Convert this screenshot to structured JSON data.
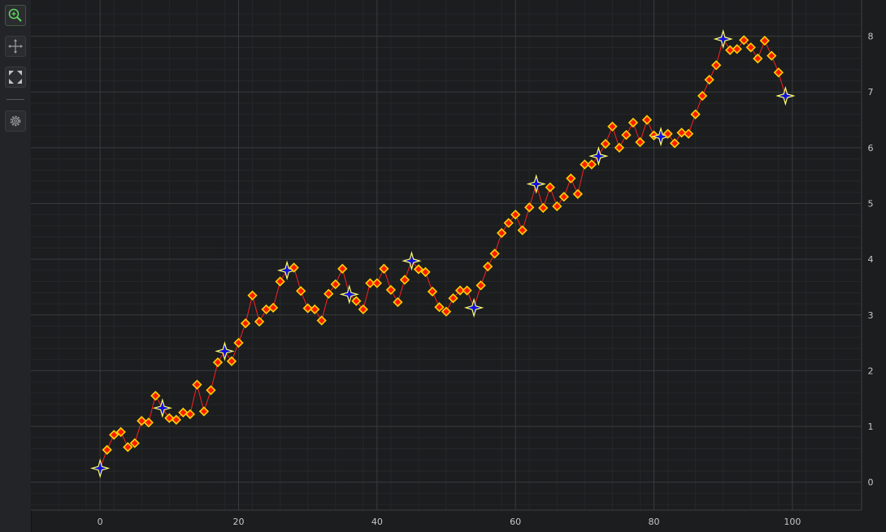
{
  "toolbar": {
    "buttons": [
      {
        "name": "zoom",
        "icon": "zoom-in-icon"
      },
      {
        "name": "pan",
        "icon": "pan-arrows-icon"
      },
      {
        "name": "zoom-extents",
        "icon": "zoom-extents-icon"
      },
      {
        "name": "settings",
        "icon": "gear-icon"
      }
    ]
  },
  "colors": {
    "background": "#1c1d1f",
    "grid_major": "#3a3b3e",
    "grid_minor": "#26272a",
    "line": "#ff2020",
    "marker_fill": "#ff1a00",
    "marker_stroke": "#ffd200",
    "star_fill": "#1010dd",
    "star_stroke": "#ffff66"
  },
  "chart_data": {
    "type": "line",
    "title": "",
    "xlabel": "",
    "ylabel": "",
    "xlim": [
      -10,
      110
    ],
    "ylim": [
      -0.5,
      8.65
    ],
    "x_ticks": [
      "0",
      "20",
      "40",
      "60",
      "80",
      "100"
    ],
    "y_ticks": [
      "0",
      "1",
      "2",
      "3",
      "4",
      "5",
      "6",
      "7",
      "8"
    ],
    "y_axis_position": "right",
    "grid": true,
    "legend": "none",
    "x": [
      0,
      1,
      2,
      3,
      4,
      5,
      6,
      7,
      8,
      9,
      10,
      11,
      12,
      13,
      14,
      15,
      16,
      17,
      18,
      19,
      20,
      21,
      22,
      23,
      24,
      25,
      26,
      27,
      28,
      29,
      30,
      31,
      32,
      33,
      34,
      35,
      36,
      37,
      38,
      39,
      40,
      41,
      42,
      43,
      44,
      45,
      46,
      47,
      48,
      49,
      50,
      51,
      52,
      53,
      54,
      55,
      56,
      57,
      58,
      59,
      60,
      61,
      62,
      63,
      64,
      65,
      66,
      67,
      68,
      69,
      70,
      71,
      72,
      73,
      74,
      75,
      76,
      77,
      78,
      79,
      80,
      81,
      82,
      83,
      84,
      85,
      86,
      87,
      88,
      89,
      90,
      91,
      92,
      93,
      94,
      95,
      96,
      97,
      98,
      99
    ],
    "values": [
      0.25,
      0.58,
      0.85,
      0.9,
      0.63,
      0.7,
      1.1,
      1.07,
      1.55,
      1.33,
      1.15,
      1.12,
      1.25,
      1.22,
      1.75,
      1.27,
      1.65,
      2.15,
      2.35,
      2.17,
      2.5,
      2.85,
      3.35,
      2.88,
      3.1,
      3.13,
      3.6,
      3.8,
      3.85,
      3.43,
      3.12,
      3.1,
      2.9,
      3.38,
      3.55,
      3.83,
      3.37,
      3.25,
      3.1,
      3.57,
      3.57,
      3.83,
      3.45,
      3.23,
      3.63,
      3.97,
      3.82,
      3.77,
      3.42,
      3.14,
      3.06,
      3.3,
      3.44,
      3.44,
      3.13,
      3.53,
      3.87,
      4.1,
      4.47,
      4.65,
      4.8,
      4.52,
      4.93,
      5.35,
      4.92,
      5.29,
      4.95,
      5.12,
      5.45,
      5.17,
      5.7,
      5.7,
      5.85,
      6.07,
      6.38,
      6.0,
      6.23,
      6.45,
      6.1,
      6.5,
      6.22,
      6.2,
      6.25,
      6.08,
      6.27,
      6.25,
      6.6,
      6.93,
      7.22,
      7.48,
      7.95,
      7.75,
      7.77,
      7.93,
      7.8,
      7.6,
      7.92,
      7.65,
      7.35,
      6.93
    ],
    "highlight_indices": [
      0,
      9,
      18,
      27,
      36,
      45,
      54,
      63,
      72,
      81,
      90,
      99
    ]
  }
}
